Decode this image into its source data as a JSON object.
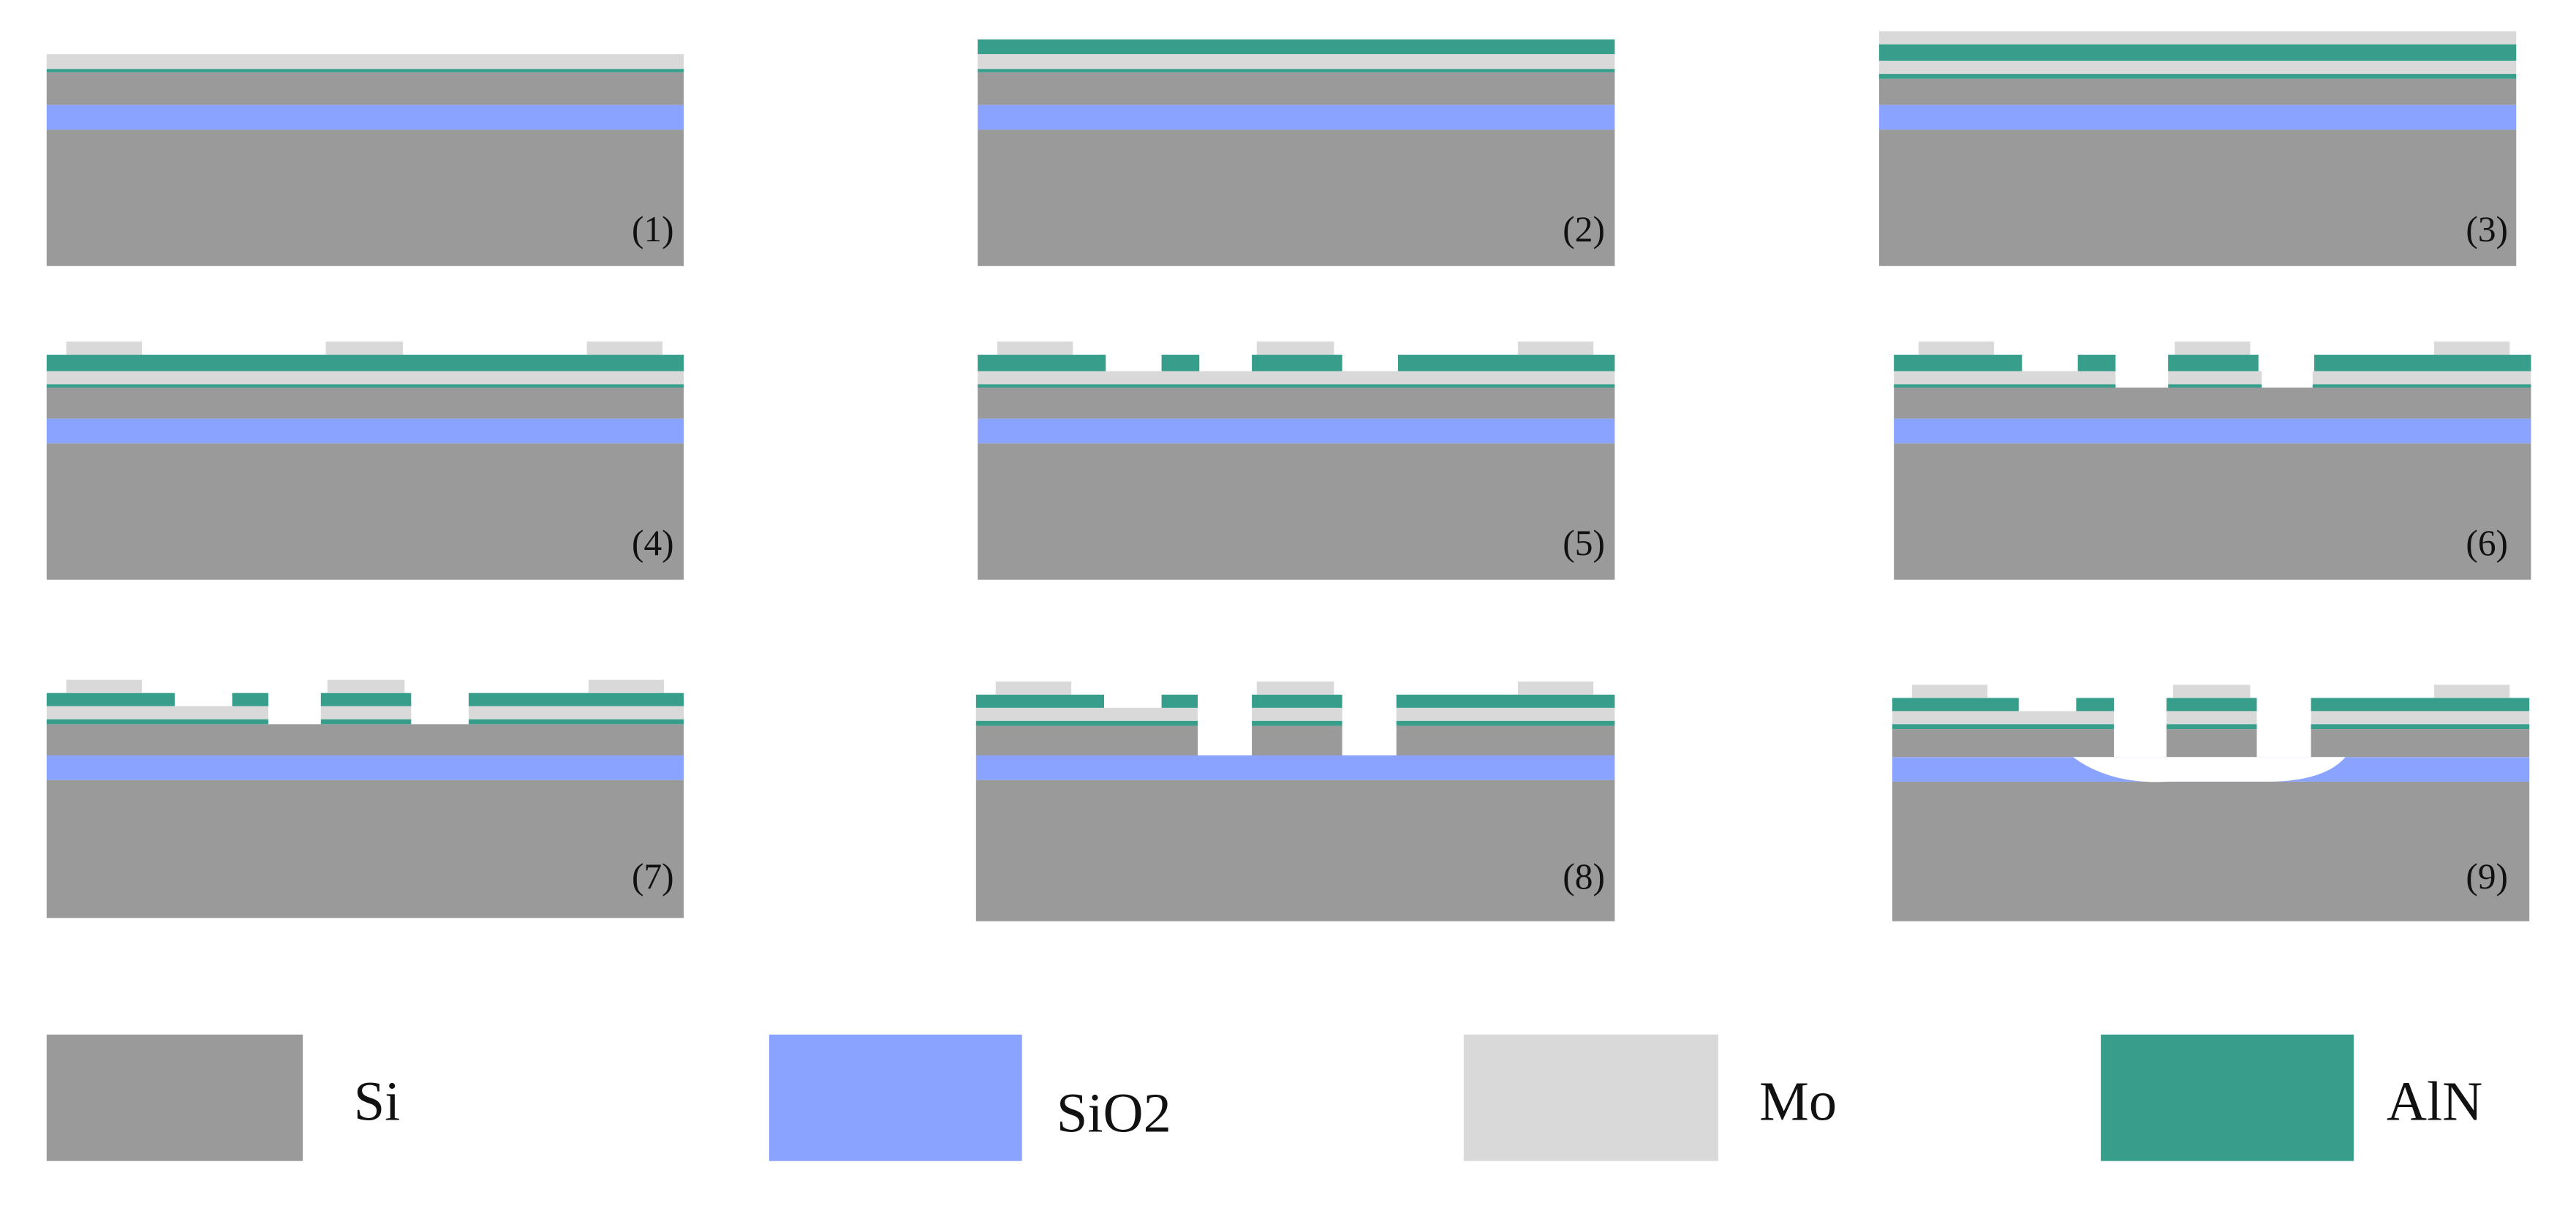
{
  "steps": [
    "(1)",
    "(2)",
    "(3)",
    "(4)",
    "(5)",
    "(6)",
    "(7)",
    "(8)",
    "(9)"
  ],
  "legend": [
    {
      "label": "Si"
    },
    {
      "label": "SiO2"
    },
    {
      "label": "Mo"
    },
    {
      "label": "AlN"
    }
  ]
}
